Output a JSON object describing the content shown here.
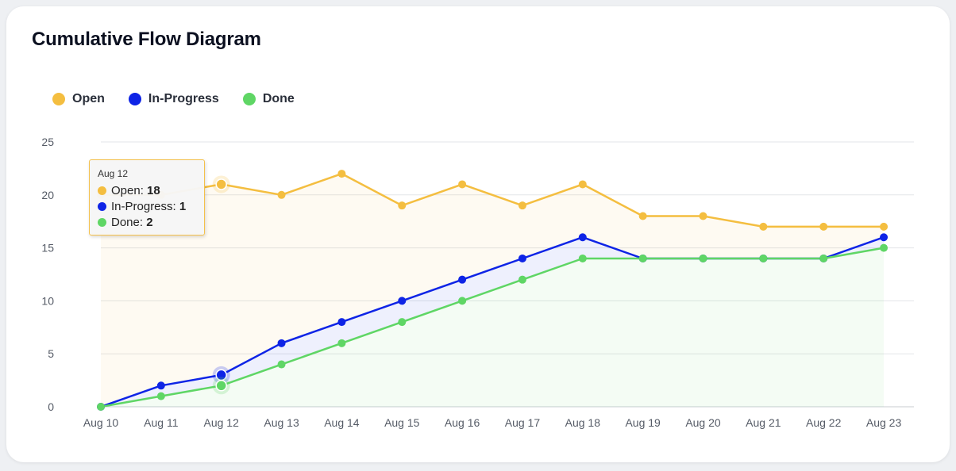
{
  "title": "Cumulative Flow Diagram",
  "colors": {
    "open": "#f4be40",
    "in_progress": "#0e24e6",
    "done": "#5fd665"
  },
  "tooltip": {
    "date": "Aug 12",
    "rows": [
      {
        "label": "Open",
        "value": "18",
        "color": "#f4be40"
      },
      {
        "label": "In-Progress",
        "value": "1",
        "color": "#0e24e6"
      },
      {
        "label": "Done",
        "value": "2",
        "color": "#5fd665"
      }
    ]
  },
  "chart_data": {
    "type": "area",
    "title": "Cumulative Flow Diagram",
    "categories": [
      "Aug 10",
      "Aug 11",
      "Aug 12",
      "Aug 13",
      "Aug 14",
      "Aug 15",
      "Aug 16",
      "Aug 17",
      "Aug 18",
      "Aug 19",
      "Aug 20",
      "Aug 21",
      "Aug 22",
      "Aug 23"
    ],
    "yticks": [
      "0",
      "5",
      "10",
      "15",
      "20",
      "25"
    ],
    "ylim": [
      0,
      25
    ],
    "grid": true,
    "legend_position": "top-left",
    "series": [
      {
        "name": "Open",
        "color": "#f4be40",
        "values": [
          20,
          20,
          21,
          20,
          22,
          19,
          21,
          19,
          21,
          18,
          18,
          17,
          17,
          17
        ]
      },
      {
        "name": "In-Progress",
        "color": "#0e24e6",
        "values": [
          0,
          2,
          3,
          6,
          8,
          10,
          12,
          14,
          16,
          14,
          14,
          14,
          14,
          16
        ]
      },
      {
        "name": "Done",
        "color": "#5fd665",
        "values": [
          0,
          1,
          2,
          4,
          6,
          8,
          10,
          12,
          14,
          14,
          14,
          14,
          14,
          15
        ]
      }
    ]
  }
}
